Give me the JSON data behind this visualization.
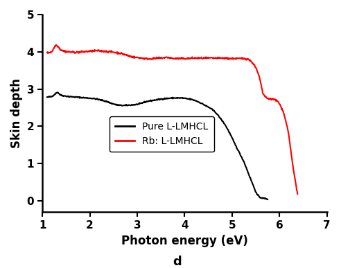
{
  "title": "d",
  "xlabel": "Photon energy (eV)",
  "ylabel": "Skin depth",
  "xlim": [
    1,
    7
  ],
  "ylim": [
    -0.3,
    5
  ],
  "yticks": [
    0,
    1,
    2,
    3,
    4,
    5
  ],
  "xticks": [
    1,
    2,
    3,
    4,
    5,
    6,
    7
  ],
  "legend_labels": [
    "Pure L-LMHCL",
    "Rb: L-LMHCL"
  ],
  "legend_colors": [
    "black",
    "red"
  ],
  "black_line_x": [
    1.1,
    1.2,
    1.28,
    1.32,
    1.38,
    1.45,
    1.55,
    1.65,
    1.75,
    1.85,
    1.95,
    2.05,
    2.15,
    2.25,
    2.35,
    2.45,
    2.55,
    2.65,
    2.75,
    2.85,
    2.95,
    3.05,
    3.15,
    3.25,
    3.35,
    3.45,
    3.55,
    3.65,
    3.75,
    3.85,
    3.95,
    4.05,
    4.15,
    4.25,
    4.35,
    4.45,
    4.55,
    4.65,
    4.75,
    4.85,
    4.95,
    5.05,
    5.15,
    5.25,
    5.35,
    5.45,
    5.52,
    5.58,
    5.65,
    5.75
  ],
  "black_line_y": [
    2.78,
    2.8,
    2.88,
    2.92,
    2.84,
    2.82,
    2.8,
    2.79,
    2.78,
    2.77,
    2.76,
    2.75,
    2.73,
    2.7,
    2.67,
    2.62,
    2.58,
    2.56,
    2.56,
    2.57,
    2.58,
    2.6,
    2.65,
    2.68,
    2.7,
    2.72,
    2.74,
    2.75,
    2.76,
    2.76,
    2.76,
    2.74,
    2.72,
    2.68,
    2.62,
    2.55,
    2.48,
    2.38,
    2.22,
    2.05,
    1.82,
    1.55,
    1.3,
    1.05,
    0.72,
    0.4,
    0.18,
    0.1,
    0.07,
    0.05
  ],
  "red_line_x": [
    1.1,
    1.2,
    1.28,
    1.33,
    1.38,
    1.45,
    1.55,
    1.65,
    1.75,
    1.85,
    1.95,
    2.05,
    2.15,
    2.25,
    2.35,
    2.45,
    2.55,
    2.65,
    2.75,
    2.85,
    2.95,
    3.05,
    3.15,
    3.25,
    3.35,
    3.45,
    3.55,
    3.65,
    3.75,
    3.85,
    3.95,
    4.05,
    4.15,
    4.25,
    4.35,
    4.45,
    4.55,
    4.65,
    4.75,
    4.85,
    4.95,
    5.05,
    5.15,
    5.25,
    5.35,
    5.45,
    5.52,
    5.58,
    5.65,
    5.72,
    5.82,
    5.9,
    5.98,
    6.08,
    6.18,
    6.28,
    6.38
  ],
  "red_line_y": [
    3.97,
    4.0,
    4.18,
    4.15,
    4.06,
    4.02,
    4.0,
    3.99,
    3.99,
    4.0,
    4.01,
    4.02,
    4.03,
    4.02,
    4.01,
    4.0,
    3.98,
    3.96,
    3.92,
    3.88,
    3.85,
    3.84,
    3.82,
    3.81,
    3.82,
    3.83,
    3.84,
    3.85,
    3.82,
    3.82,
    3.82,
    3.82,
    3.83,
    3.83,
    3.83,
    3.83,
    3.83,
    3.83,
    3.83,
    3.83,
    3.82,
    3.82,
    3.82,
    3.82,
    3.8,
    3.68,
    3.52,
    3.3,
    2.88,
    2.76,
    2.73,
    2.72,
    2.65,
    2.4,
    1.9,
    0.95,
    0.18
  ],
  "noise_seed": 42,
  "black_noise_std": 0.008,
  "red_noise_std": 0.012,
  "line_width": 1.5,
  "tick_labelsize": 11,
  "axis_labelsize": 12,
  "legend_fontsize": 10,
  "spine_linewidth": 1.8,
  "background_color": "#ffffff"
}
